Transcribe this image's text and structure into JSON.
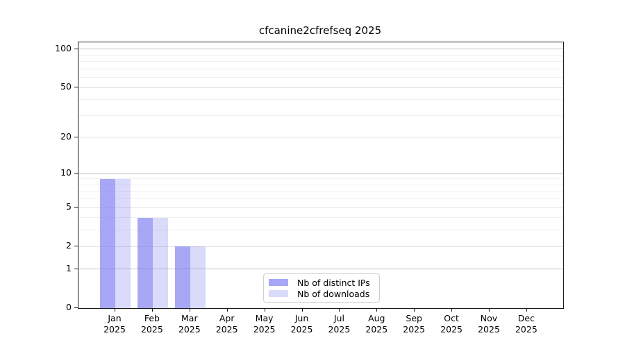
{
  "chart_data": {
    "type": "bar",
    "title": "cfcanine2cfrefseq 2025",
    "categories": [
      "Jan",
      "Feb",
      "Mar",
      "Apr",
      "May",
      "Jun",
      "Jul",
      "Aug",
      "Sep",
      "Oct",
      "Nov",
      "Dec"
    ],
    "year_label": "2025",
    "series": [
      {
        "name": "Nb of distinct IPs",
        "color": "rgba(121,121,242,0.66)",
        "values": [
          9,
          4,
          2,
          0,
          0,
          0,
          0,
          0,
          0,
          0,
          0,
          0
        ]
      },
      {
        "name": "Nb of downloads",
        "color": "rgba(121,121,242,0.28)",
        "values": [
          9,
          4,
          2,
          0,
          0,
          0,
          0,
          0,
          0,
          0,
          0,
          0
        ]
      }
    ],
    "yscale": "log1p",
    "ylim": [
      0,
      113
    ],
    "yticks": [
      0,
      1,
      2,
      5,
      10,
      20,
      50,
      100
    ],
    "grid_major": [
      1,
      10,
      100
    ],
    "grid_mid": [
      2,
      5,
      20,
      50
    ],
    "grid_minor": [
      3,
      4,
      6,
      7,
      8,
      9,
      30,
      40,
      60,
      70,
      80,
      90
    ],
    "grid": "on",
    "legend_position": "bottom-center",
    "xlabel": "",
    "ylabel": ""
  }
}
